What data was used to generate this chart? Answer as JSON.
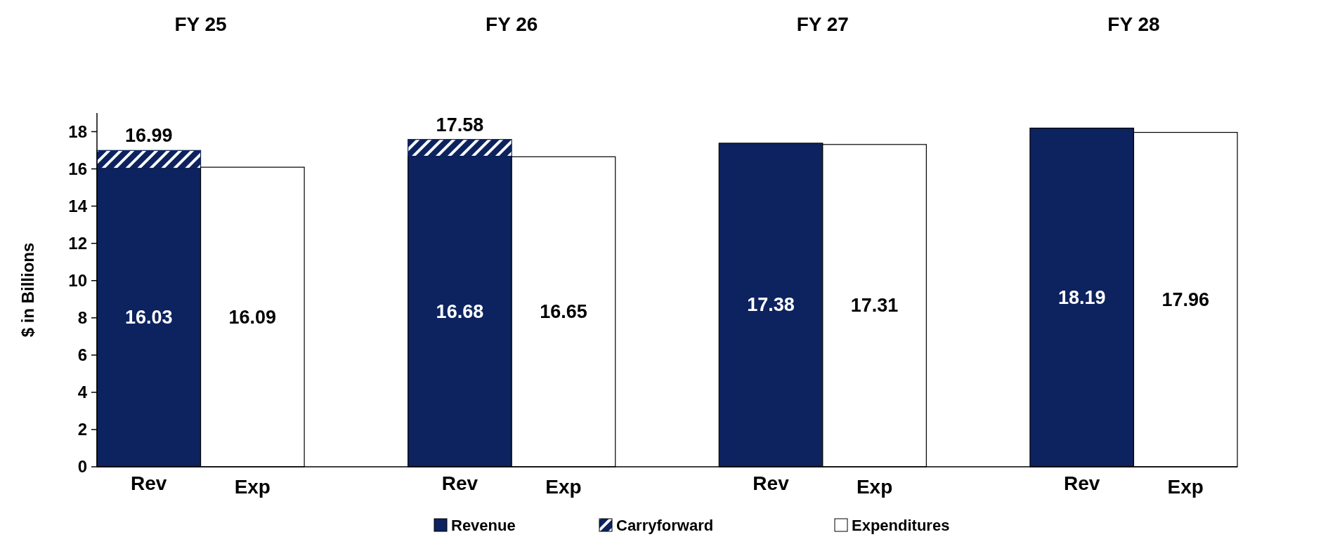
{
  "chart_data": {
    "type": "bar",
    "stacked": true,
    "ylabel": "$ in Billions",
    "categories": [
      "Rev",
      "Exp",
      "Rev",
      "Exp",
      "Rev",
      "Exp",
      "Rev",
      "Exp"
    ],
    "series": [
      {
        "name": "Revenue",
        "color": "#0d2360",
        "values": [
          16.03,
          null,
          16.68,
          null,
          17.38,
          null,
          18.19,
          null
        ],
        "value_labels": [
          "16.03",
          null,
          "16.68",
          null,
          "17.38",
          null,
          "18.19",
          null
        ]
      },
      {
        "name": "Carryforward",
        "color": "#0d2360",
        "values": [
          0.96,
          null,
          0.9,
          null,
          null,
          null,
          null,
          null
        ]
      },
      {
        "name": "Expenditures",
        "color": "#ffffff",
        "values": [
          null,
          16.09,
          null,
          16.65,
          null,
          17.31,
          null,
          17.96
        ],
        "value_labels": [
          null,
          "16.09",
          null,
          "16.65",
          null,
          "17.31",
          null,
          "17.96"
        ]
      }
    ],
    "totals": [
      "16.99",
      null,
      "17.58",
      null,
      null,
      null,
      null,
      null
    ],
    "annotations": [
      "FY 25",
      "FY 26",
      "FY 27",
      "FY 28"
    ],
    "ylim": [
      0,
      19
    ],
    "yticks": [
      0,
      2,
      4,
      6,
      8,
      10,
      12,
      14,
      16,
      18
    ],
    "legend": "bottom"
  }
}
